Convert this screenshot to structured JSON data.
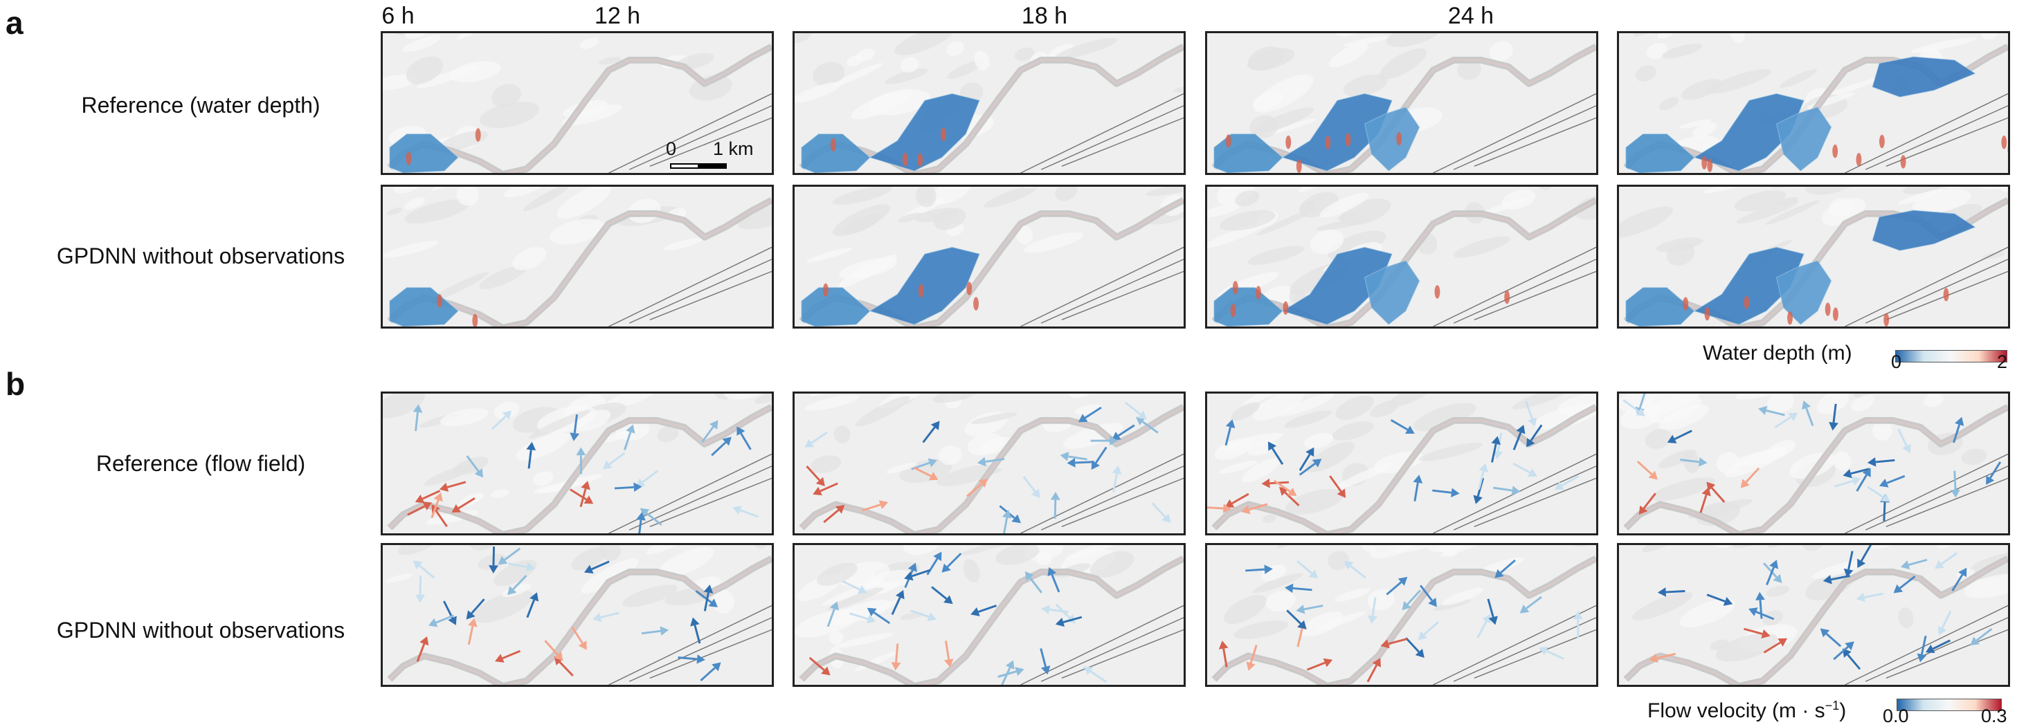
{
  "panels": {
    "a": "a",
    "b": "b"
  },
  "columns": [
    "6 h",
    "12 h",
    "18 h",
    "24 h"
  ],
  "rows_a": [
    "Reference (water depth)",
    "GPDNN without observations"
  ],
  "rows_b": [
    "Reference (flow field)",
    "GPDNN without observations"
  ],
  "scale_bar": {
    "start": "0",
    "end": "1 km"
  },
  "depth_colorbar": {
    "title": "Water depth (m)",
    "min": "0",
    "max": "2",
    "colors": [
      "#2166ac",
      "#d1e5f0",
      "#f7f7f7",
      "#fddbc7",
      "#b2182b"
    ]
  },
  "velocity_colorbar": {
    "title": "Flow velocity (m · s",
    "title_sup": "−1",
    "title_end": ")",
    "min": "0.0",
    "max": "0.3",
    "colors": [
      "#2166ac",
      "#d1e5f0",
      "#f7f7f7",
      "#fddbc7",
      "#b2182b"
    ]
  }
}
